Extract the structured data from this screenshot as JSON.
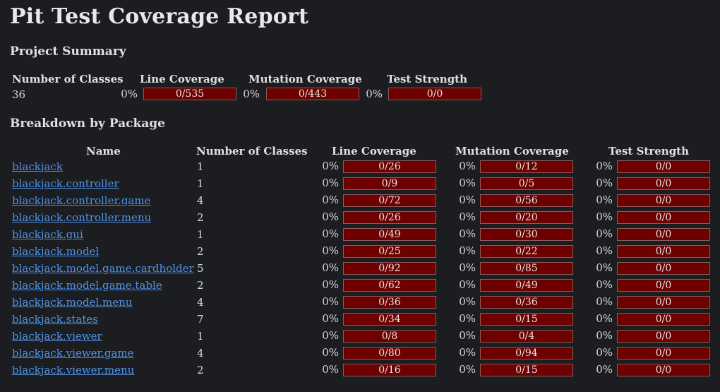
{
  "title": "Pit Test Coverage Report",
  "summary": {
    "heading": "Project Summary",
    "headers": {
      "classes": "Number of Classes",
      "line": "Line Coverage",
      "mutation": "Mutation Coverage",
      "strength": "Test Strength"
    },
    "classes": "36",
    "line_pct": "0%",
    "line_val": "0/535",
    "mutation_pct": "0%",
    "mutation_val": "0/443",
    "strength_pct": "0%",
    "strength_val": "0/0"
  },
  "breakdown": {
    "heading": "Breakdown by Package",
    "headers": {
      "name": "Name",
      "classes": "Number of Classes",
      "line": "Line Coverage",
      "mutation": "Mutation Coverage",
      "strength": "Test Strength"
    },
    "rows": [
      {
        "name": "blackjack",
        "classes": "1",
        "line_pct": "0%",
        "line": "0/26",
        "mut_pct": "0%",
        "mut": "0/12",
        "str_pct": "0%",
        "str": "0/0"
      },
      {
        "name": "blackjack.controller",
        "classes": "1",
        "line_pct": "0%",
        "line": "0/9",
        "mut_pct": "0%",
        "mut": "0/5",
        "str_pct": "0%",
        "str": "0/0"
      },
      {
        "name": "blackjack.controller.game",
        "classes": "4",
        "line_pct": "0%",
        "line": "0/72",
        "mut_pct": "0%",
        "mut": "0/56",
        "str_pct": "0%",
        "str": "0/0"
      },
      {
        "name": "blackjack.controller.menu",
        "classes": "2",
        "line_pct": "0%",
        "line": "0/26",
        "mut_pct": "0%",
        "mut": "0/20",
        "str_pct": "0%",
        "str": "0/0"
      },
      {
        "name": "blackjack.gui",
        "classes": "1",
        "line_pct": "0%",
        "line": "0/49",
        "mut_pct": "0%",
        "mut": "0/30",
        "str_pct": "0%",
        "str": "0/0"
      },
      {
        "name": "blackjack.model",
        "classes": "2",
        "line_pct": "0%",
        "line": "0/25",
        "mut_pct": "0%",
        "mut": "0/22",
        "str_pct": "0%",
        "str": "0/0"
      },
      {
        "name": "blackjack.model.game.cardholder",
        "classes": "5",
        "line_pct": "0%",
        "line": "0/92",
        "mut_pct": "0%",
        "mut": "0/85",
        "str_pct": "0%",
        "str": "0/0"
      },
      {
        "name": "blackjack.model.game.table",
        "classes": "2",
        "line_pct": "0%",
        "line": "0/62",
        "mut_pct": "0%",
        "mut": "0/49",
        "str_pct": "0%",
        "str": "0/0"
      },
      {
        "name": "blackjack.model.menu",
        "classes": "4",
        "line_pct": "0%",
        "line": "0/36",
        "mut_pct": "0%",
        "mut": "0/36",
        "str_pct": "0%",
        "str": "0/0"
      },
      {
        "name": "blackjack.states",
        "classes": "7",
        "line_pct": "0%",
        "line": "0/34",
        "mut_pct": "0%",
        "mut": "0/15",
        "str_pct": "0%",
        "str": "0/0"
      },
      {
        "name": "blackjack.viewer",
        "classes": "1",
        "line_pct": "0%",
        "line": "0/8",
        "mut_pct": "0%",
        "mut": "0/4",
        "str_pct": "0%",
        "str": "0/0"
      },
      {
        "name": "blackjack.viewer.game",
        "classes": "4",
        "line_pct": "0%",
        "line": "0/80",
        "mut_pct": "0%",
        "mut": "0/94",
        "str_pct": "0%",
        "str": "0/0"
      },
      {
        "name": "blackjack.viewer.menu",
        "classes": "2",
        "line_pct": "0%",
        "line": "0/16",
        "mut_pct": "0%",
        "mut": "0/15",
        "str_pct": "0%",
        "str": "0/0"
      }
    ]
  }
}
